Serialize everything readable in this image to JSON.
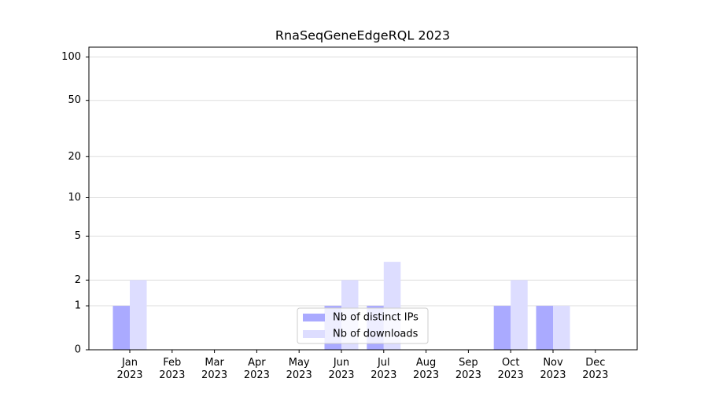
{
  "chart_data": {
    "type": "bar",
    "title": "RnaSeqGeneEdgeRQL 2023",
    "categories": [
      "Jan 2023",
      "Feb 2023",
      "Mar 2023",
      "Apr 2023",
      "May 2023",
      "Jun 2023",
      "Jul 2023",
      "Aug 2023",
      "Sep 2023",
      "Oct 2023",
      "Nov 2023",
      "Dec 2023"
    ],
    "series": [
      {
        "name": "Nb of distinct IPs",
        "color": "#aaaaff",
        "values": [
          1,
          0,
          0,
          0,
          0,
          1,
          1,
          0,
          0,
          1,
          1,
          0
        ]
      },
      {
        "name": "Nb of downloads",
        "color": "#ddddff",
        "values": [
          2,
          0,
          0,
          0,
          0,
          2,
          3,
          0,
          0,
          2,
          1,
          0
        ]
      }
    ],
    "yscale": "log1p",
    "ylim": [
      0,
      117
    ],
    "yticks": [
      0,
      1,
      2,
      5,
      10,
      20,
      50,
      100
    ],
    "grid": true,
    "legend": "lower center"
  }
}
